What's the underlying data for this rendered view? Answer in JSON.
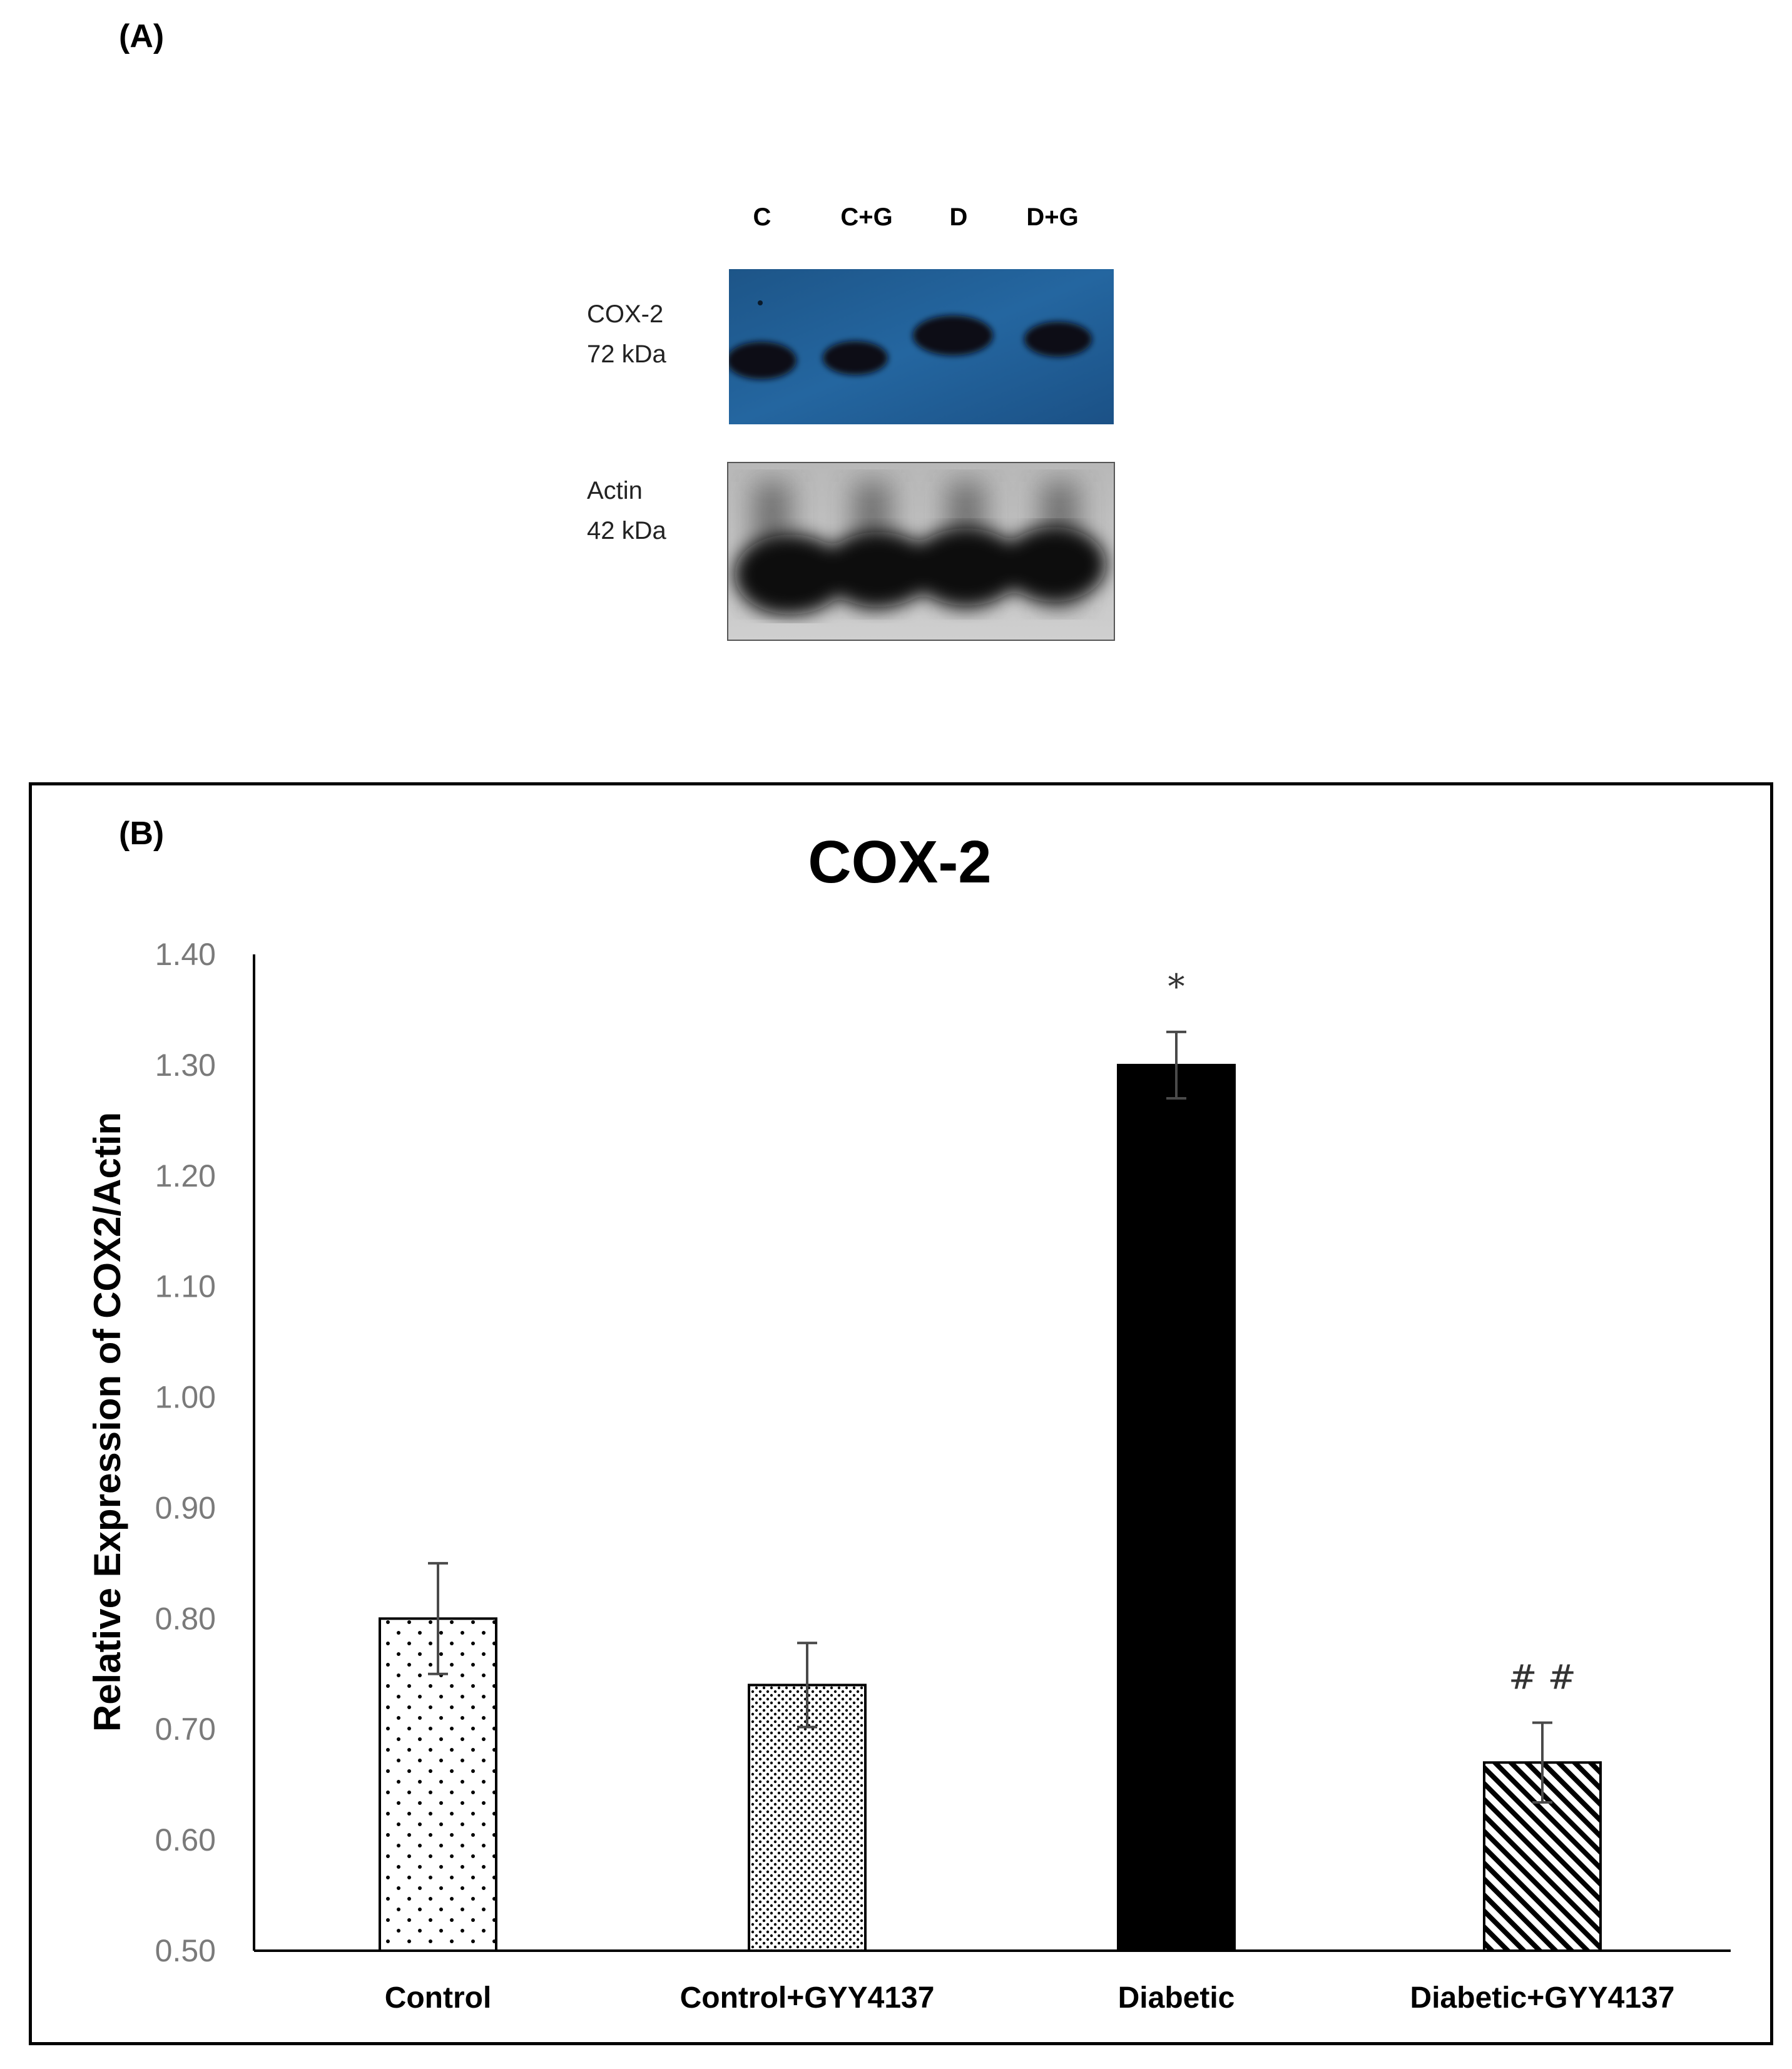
{
  "panel_a": {
    "label": "(A)",
    "lanes": [
      "C",
      "C+G",
      "D",
      "D+G"
    ],
    "cox2_label": {
      "line1": "COX-2",
      "line2": "72 kDa"
    },
    "actin_label": {
      "line1": "Actin",
      "line2": "42 kDa"
    },
    "colors": {
      "cox2_background": "#1f5a8c",
      "actin_background": "#c9c9c9",
      "band": "#0a0e14"
    }
  },
  "panel_b": {
    "label": "(B)"
  },
  "chart_data": {
    "type": "bar",
    "title": "COX-2",
    "xlabel": "",
    "ylabel": "Relative Expression of COX2/Actin",
    "categories": [
      "Control",
      "Control+GYY4137",
      "Diabetic",
      "Diabetic+GYY4137"
    ],
    "values": [
      0.8,
      0.74,
      1.3,
      0.67
    ],
    "errors": [
      0.05,
      0.038,
      0.03,
      0.036
    ],
    "annotations": [
      "",
      "",
      "*",
      "# #"
    ],
    "fills": [
      "sparse-dots",
      "dense-dots",
      "solid-black",
      "diagonal-hatch"
    ],
    "ylim": [
      0.5,
      1.4
    ],
    "yticks": [
      "0.50",
      "0.60",
      "0.70",
      "0.80",
      "0.90",
      "1.00",
      "1.10",
      "1.20",
      "1.30",
      "1.40"
    ],
    "grid": false,
    "legend": "none"
  }
}
